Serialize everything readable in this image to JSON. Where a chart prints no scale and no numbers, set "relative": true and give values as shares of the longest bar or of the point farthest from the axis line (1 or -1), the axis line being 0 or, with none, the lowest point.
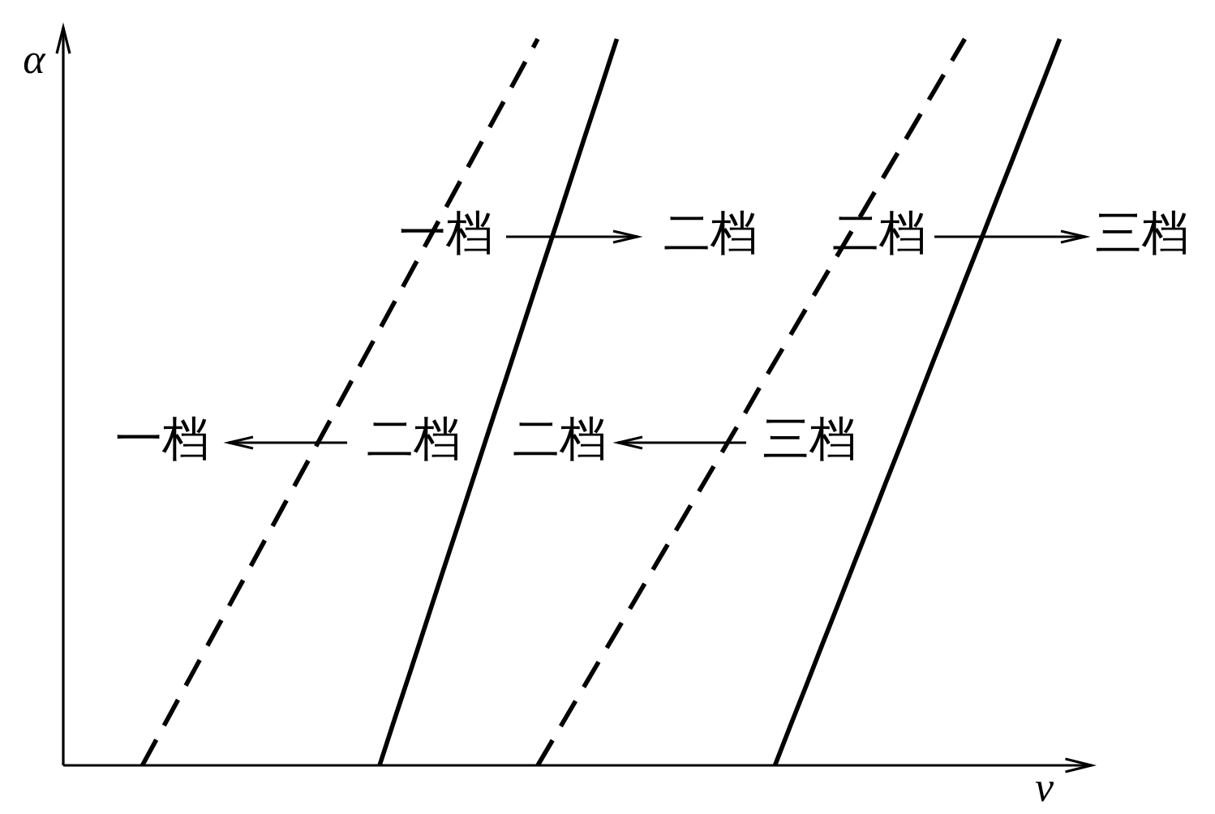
{
  "chart_data": {
    "type": "line",
    "relative": true,
    "xlabel": "v",
    "ylabel": "α",
    "grid": false,
    "legend": false,
    "tick_labels": false,
    "marker": "none",
    "categories": [
      null,
      null,
      null,
      null,
      null,
      null,
      null,
      null,
      null,
      null,
      null,
      null,
      null,
      null,
      null,
      null,
      null,
      null,
      null,
      null,
      null,
      null,
      null,
      null,
      null,
      null,
      null,
      null,
      null,
      null,
      null,
      null,
      null,
      null,
      null,
      null,
      null,
      null,
      null,
      null,
      null,
      null,
      null,
      null,
      null,
      null,
      null,
      null,
      null,
      null,
      null,
      null,
      null,
      null,
      null,
      null,
      null,
      null,
      null,
      null,
      null,
      null,
      null,
      null,
      null,
      null
    ],
    "series": [
      {
        "color": "#000000",
        "line_style": "dashed",
        "values": [
          null,
          null,
          null,
          null,
          null,
          0,
          0.04,
          0.08,
          0.12,
          0.16,
          0.2,
          0.24,
          0.28,
          0.32,
          0.36,
          0.4,
          0.44,
          0.48,
          0.52,
          0.56,
          0.6,
          0.64,
          0.68,
          0.72,
          0.76,
          0.8,
          0.84,
          0.88,
          0.92,
          0.96,
          1,
          null,
          null,
          null,
          null,
          null,
          null,
          null,
          null,
          null,
          null,
          null,
          null,
          null,
          null,
          null,
          null,
          null,
          null,
          null,
          null,
          null,
          null,
          null,
          null,
          null,
          null,
          null,
          null,
          null,
          null,
          null,
          null,
          null,
          null,
          null
        ]
      },
      {
        "color": "#000000",
        "line_style": "solid",
        "values": [
          null,
          null,
          null,
          null,
          null,
          null,
          null,
          null,
          null,
          null,
          null,
          null,
          null,
          null,
          null,
          null,
          null,
          null,
          null,
          null,
          0,
          0.067,
          0.133,
          0.2,
          0.267,
          0.333,
          0.4,
          0.467,
          0.533,
          0.6,
          0.667,
          0.733,
          0.8,
          0.867,
          0.933,
          1,
          null,
          null,
          null,
          null,
          null,
          null,
          null,
          null,
          null,
          null,
          null,
          null,
          null,
          null,
          null,
          null,
          null,
          null,
          null,
          null,
          null,
          null,
          null,
          null,
          null,
          null,
          null,
          null,
          null,
          null
        ]
      },
      {
        "color": "#000000",
        "line_style": "dashed",
        "values": [
          null,
          null,
          null,
          null,
          null,
          null,
          null,
          null,
          null,
          null,
          null,
          null,
          null,
          null,
          null,
          null,
          null,
          null,
          null,
          null,
          null,
          null,
          null,
          null,
          null,
          null,
          null,
          null,
          null,
          null,
          0,
          0.037,
          0.074,
          0.111,
          0.148,
          0.185,
          0.222,
          0.259,
          0.296,
          0.333,
          0.37,
          0.407,
          0.444,
          0.481,
          0.519,
          0.556,
          0.593,
          0.63,
          0.667,
          0.704,
          0.741,
          0.778,
          0.815,
          0.852,
          0.889,
          0.926,
          0.963,
          1,
          null,
          null,
          null,
          null,
          null,
          null,
          null,
          null
        ]
      },
      {
        "color": "#000000",
        "line_style": "solid",
        "values": [
          null,
          null,
          null,
          null,
          null,
          null,
          null,
          null,
          null,
          null,
          null,
          null,
          null,
          null,
          null,
          null,
          null,
          null,
          null,
          null,
          null,
          null,
          null,
          null,
          null,
          null,
          null,
          null,
          null,
          null,
          null,
          null,
          null,
          null,
          null,
          null,
          null,
          null,
          null,
          null,
          null,
          null,
          null,
          null,
          null,
          0,
          0.056,
          0.111,
          0.167,
          0.222,
          0.278,
          0.333,
          0.389,
          0.444,
          0.5,
          0.556,
          0.611,
          0.667,
          0.722,
          0.778,
          0.833,
          0.889,
          0.944,
          1,
          null,
          null
        ]
      }
    ],
    "annotations": [
      "一档",
      "二档",
      "二档",
      "三档",
      "一档",
      "二档",
      "二档",
      "三档"
    ]
  }
}
